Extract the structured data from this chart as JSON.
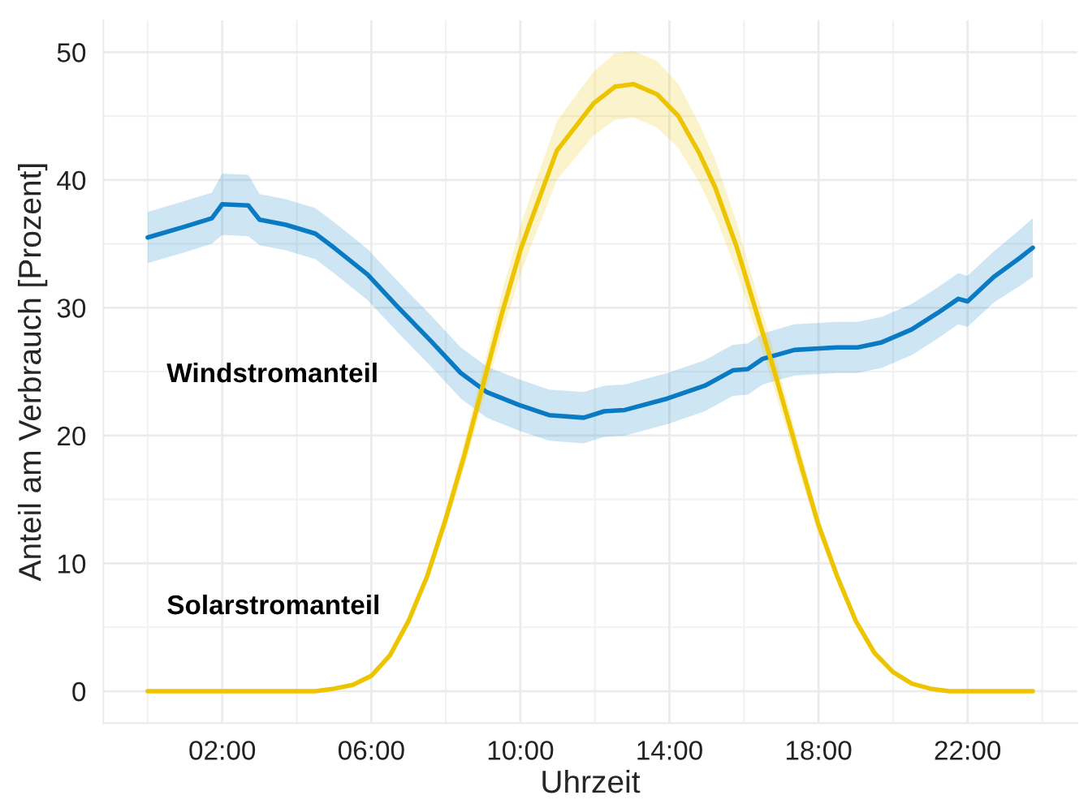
{
  "chart_data": {
    "type": "line",
    "xlabel": "Uhrzeit",
    "ylabel": "Anteil am Verbrauch [Prozent]",
    "xlim": [
      -1.19,
      24.94
    ],
    "ylim": [
      -2.5,
      52.5
    ],
    "xticks": [
      {
        "value": 2,
        "label": "02:00"
      },
      {
        "value": 6,
        "label": "06:00"
      },
      {
        "value": 10,
        "label": "10:00"
      },
      {
        "value": 14,
        "label": "14:00"
      },
      {
        "value": 18,
        "label": "18:00"
      },
      {
        "value": 22,
        "label": "22:00"
      }
    ],
    "yticks": [
      0,
      10,
      20,
      30,
      40,
      50
    ],
    "grid": true,
    "legend": false,
    "marker": "none",
    "line_style": "solid",
    "series": [
      {
        "name": "Windstromanteil",
        "color": "#0a7bc2",
        "x": [
          0,
          0.94,
          1.72,
          2,
          2.7,
          3,
          3.7,
          4.5,
          5,
          5.9,
          6.7,
          7.6,
          8.4,
          9.1,
          9.96,
          10.77,
          11.7,
          12.25,
          12.8,
          13.95,
          14.95,
          15.7,
          16.1,
          16.5,
          17.35,
          18.5,
          19.05,
          19.7,
          20.5,
          21.2,
          21.75,
          22,
          22.7,
          23.4,
          23.75
        ],
        "values": [
          35.5,
          36.3,
          37.0,
          38.1,
          38.0,
          36.9,
          36.5,
          35.8,
          34.7,
          32.6,
          30.1,
          27.4,
          24.9,
          23.4,
          22.4,
          21.6,
          21.4,
          21.9,
          22.0,
          22.9,
          23.9,
          25.1,
          25.2,
          26.0,
          26.7,
          26.9,
          26.9,
          27.3,
          28.3,
          29.6,
          30.7,
          30.5,
          32.4,
          33.9,
          34.7
        ],
        "lower": [
          33.5,
          34.3,
          35.0,
          35.7,
          35.6,
          34.9,
          34.5,
          33.8,
          32.7,
          30.6,
          28.1,
          25.4,
          22.9,
          21.4,
          20.4,
          19.6,
          19.4,
          19.9,
          20.0,
          20.9,
          21.9,
          23.1,
          23.2,
          24.0,
          24.7,
          24.9,
          24.9,
          25.3,
          26.3,
          27.6,
          28.7,
          28.5,
          30.4,
          31.7,
          32.4
        ],
        "upper": [
          37.5,
          38.3,
          39.0,
          40.5,
          40.4,
          38.9,
          38.5,
          37.8,
          36.7,
          34.6,
          32.1,
          29.4,
          26.9,
          25.4,
          24.4,
          23.6,
          23.4,
          23.9,
          24.0,
          24.9,
          25.9,
          27.1,
          27.2,
          28.0,
          28.7,
          28.9,
          28.9,
          29.3,
          30.3,
          31.6,
          32.7,
          32.5,
          34.4,
          36.1,
          37.0
        ]
      },
      {
        "name": "Solarstromanteil",
        "color": "#ecc500",
        "x": [
          0,
          4.5,
          5,
          5.5,
          6,
          6.5,
          7,
          7.5,
          8,
          8.5,
          9,
          9.5,
          10,
          10.27,
          10.98,
          11.97,
          12.54,
          13.03,
          13.67,
          14.24,
          14.8,
          15.23,
          15.8,
          16.36,
          16.8,
          17.57,
          18,
          18.5,
          19,
          19.5,
          20,
          20.5,
          21,
          21.5,
          23.75
        ],
        "values": [
          0,
          0,
          0.2,
          0.5,
          1.2,
          2.8,
          5.5,
          9,
          13.5,
          18.5,
          24,
          29.5,
          34.5,
          36.7,
          42.3,
          46,
          47.3,
          47.5,
          46.7,
          45,
          42.1,
          39.4,
          34.8,
          29.4,
          25.2,
          17.3,
          13,
          9,
          5.5,
          3,
          1.5,
          0.6,
          0.2,
          0,
          0
        ],
        "lower": [
          0,
          0,
          0.2,
          0.5,
          1.1,
          2.6,
          5.2,
          8.5,
          12.8,
          17.5,
          22.7,
          27.9,
          32.6,
          34.7,
          40,
          43.5,
          44.7,
          44.9,
          44.1,
          42.5,
          39.8,
          37.2,
          32.9,
          27.8,
          23.8,
          16.3,
          12.3,
          8.5,
          5.2,
          2.8,
          1.4,
          0.6,
          0.2,
          0,
          0
        ],
        "upper": [
          0,
          0,
          0.2,
          0.5,
          1.3,
          3,
          5.8,
          9.5,
          14.2,
          19.5,
          25.3,
          31.1,
          36.4,
          38.7,
          44.6,
          48.5,
          49.9,
          50.1,
          49.3,
          47.5,
          44.4,
          41.6,
          36.7,
          31,
          26.6,
          18.3,
          13.7,
          9.5,
          5.8,
          3.2,
          1.6,
          0.6,
          0.2,
          0,
          0
        ]
      }
    ]
  }
}
